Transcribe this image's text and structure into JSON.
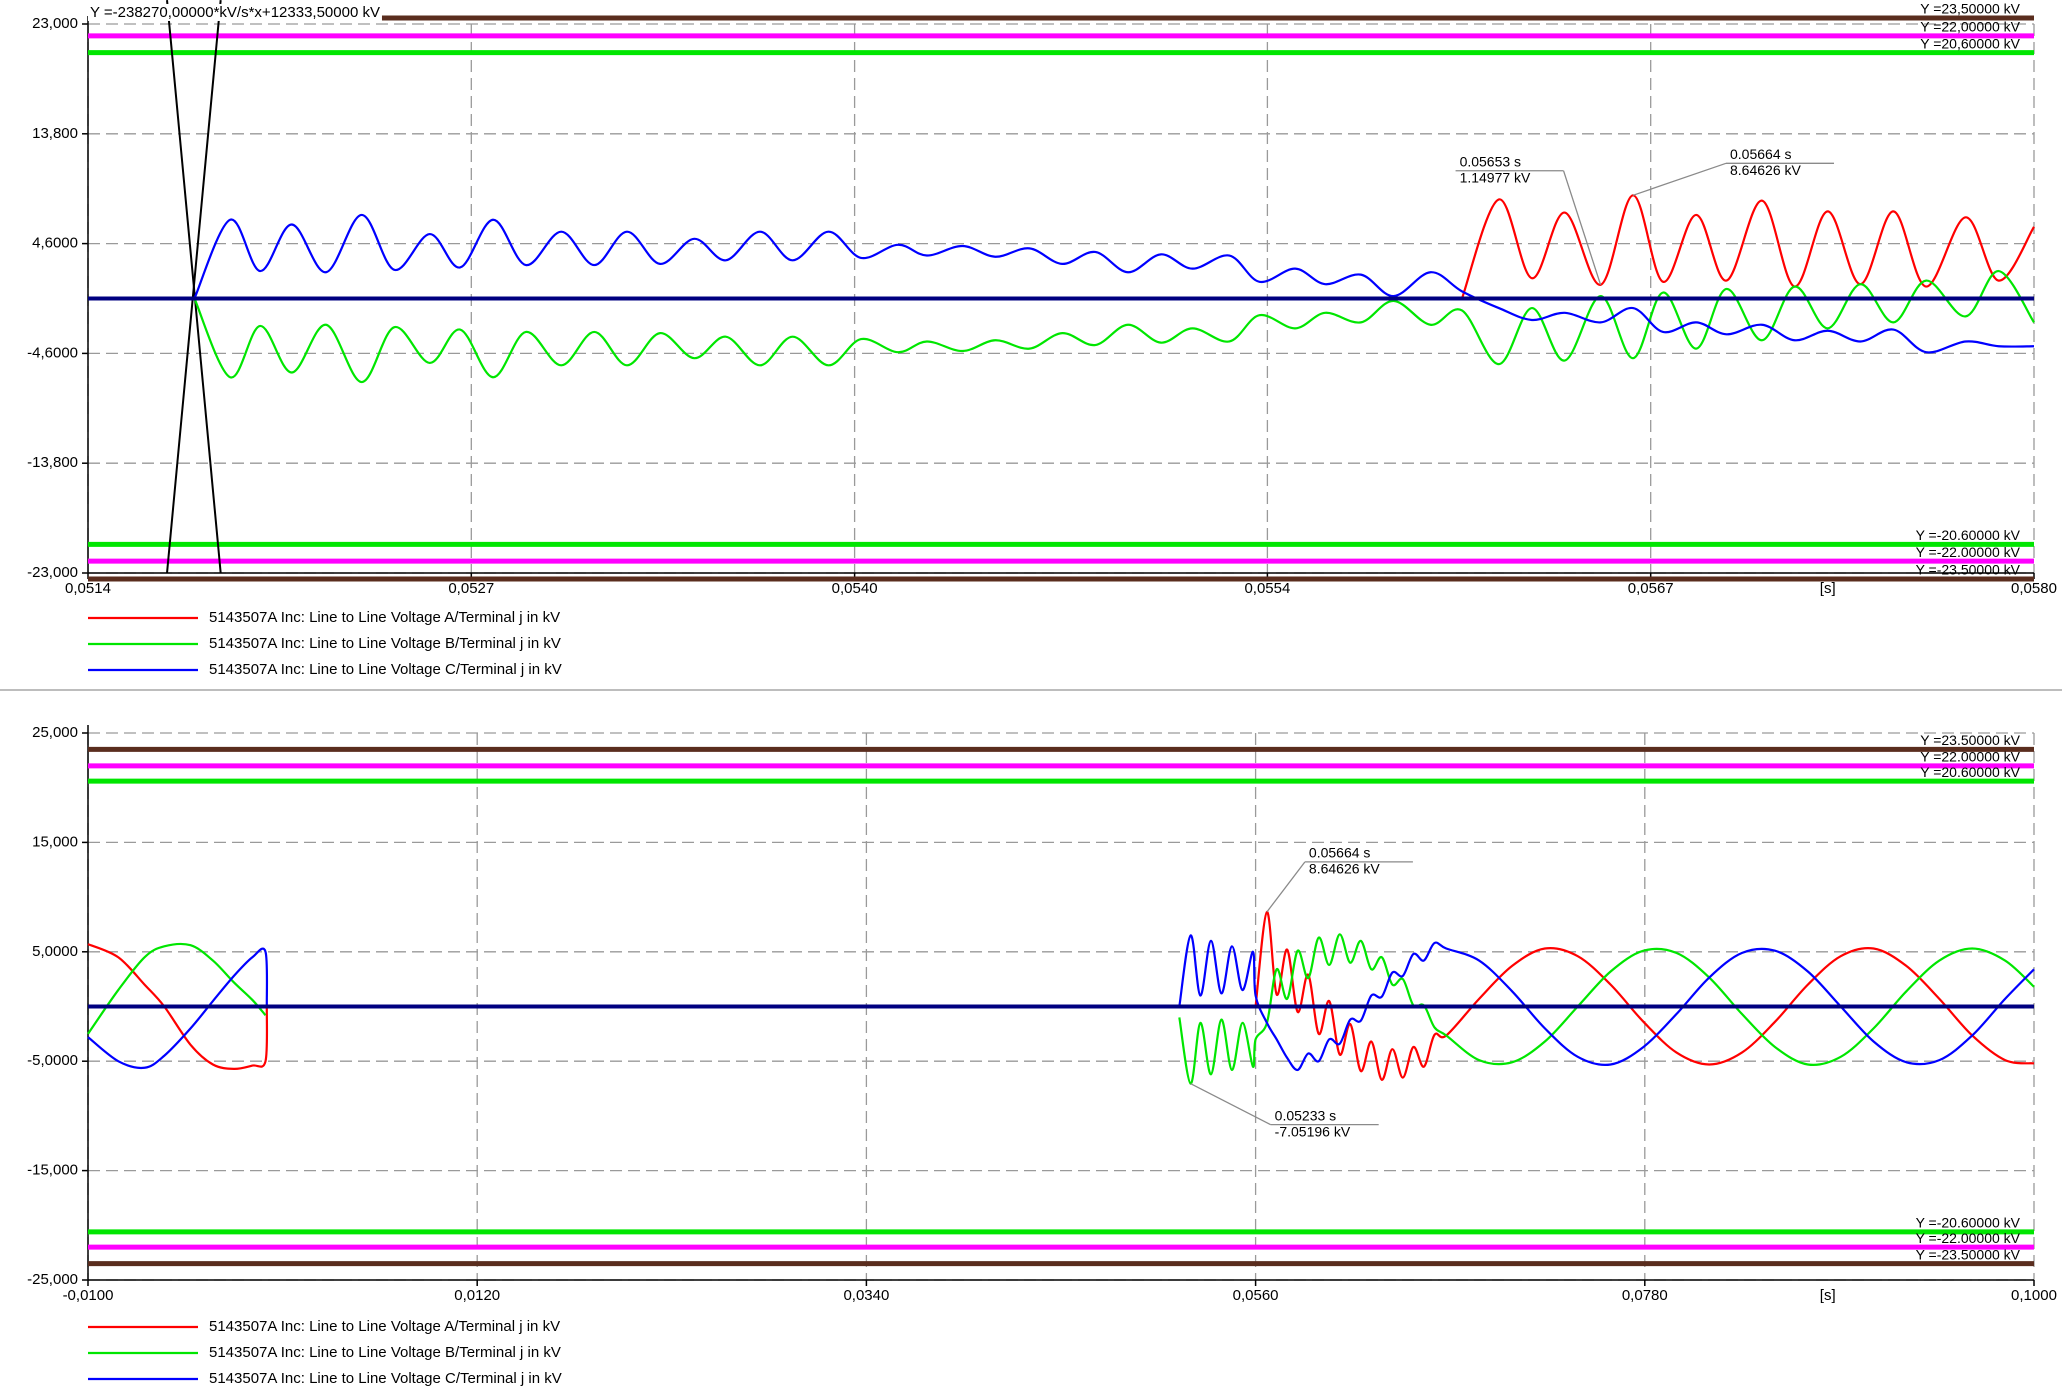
{
  "chart_data": [
    {
      "type": "line",
      "formula": "Y =-238270,00000*kV/s*x+12333,50000 kV",
      "x_unit": "[s]",
      "xlim": [
        0.0514,
        0.058
      ],
      "xticks": [
        {
          "value": 0.0514,
          "label": "0,0514"
        },
        {
          "value": 0.0527,
          "label": "0,0527"
        },
        {
          "value": 0.054,
          "label": "0,0540"
        },
        {
          "value": 0.0554,
          "label": "0,0554"
        },
        {
          "value": 0.0567,
          "label": "0,0567"
        },
        {
          "value": 0.058,
          "label": "0,0580"
        }
      ],
      "ylim": [
        -23,
        23
      ],
      "yticks": [
        {
          "value": 23,
          "label": "23,000"
        },
        {
          "value": 13.8,
          "label": "13,800"
        },
        {
          "value": 4.6,
          "label": "4,6000"
        },
        {
          "value": -4.6,
          "label": "-4,6000"
        },
        {
          "value": -13.8,
          "label": "-13,800"
        },
        {
          "value": -23,
          "label": "-23,000"
        }
      ],
      "grid": true,
      "limits": [
        {
          "value": 23.5,
          "label": "Y =23,50000 kV",
          "color": "#5a2d1e"
        },
        {
          "value": 22,
          "label": "Y =22,00000 kV",
          "color": "#ff00ff"
        },
        {
          "value": 20.6,
          "label": "Y =20,60000 kV",
          "color": "#00e600"
        },
        {
          "value": -20.6,
          "label": "Y =-20.60000 kV",
          "color": "#00e600"
        },
        {
          "value": -22,
          "label": "Y =-22.00000 kV",
          "color": "#ff00ff"
        },
        {
          "value": -23.5,
          "label": "Y =-23.50000 kV",
          "color": "#5a2d1e"
        }
      ],
      "ref_lines": [
        {
          "x": [
            0.051668,
            0.05185
          ],
          "values": [
            25,
            -23
          ]
        },
        {
          "x": [
            0.05185,
            0.051668
          ],
          "values": [
            25,
            -23
          ]
        }
      ],
      "annotations": [
        {
          "x": 0.05653,
          "y": 1.14977,
          "x_label": "0.05653 s",
          "y_label": "1.14977 kV"
        },
        {
          "x": 0.05664,
          "y": 8.64626,
          "x_label": "0.05664 s",
          "y_label": "8.64626 kV"
        }
      ],
      "x": [
        0.051761,
        0.051882,
        0.051984,
        0.052091,
        0.052207,
        0.052328,
        0.052439,
        0.052559,
        0.052662,
        0.052774,
        0.052885,
        0.053005,
        0.053117,
        0.053228,
        0.05334,
        0.053456,
        0.053563,
        0.053679,
        0.05379,
        0.053911,
        0.054022,
        0.054147,
        0.054245,
        0.054366,
        0.054477,
        0.054593,
        0.054704,
        0.054816,
        0.054927,
        0.055039,
        0.055146,
        0.055271,
        0.055373,
        0.055494,
        0.055596,
        0.055717,
        0.055828,
        0.055953,
        0.05606,
        0.056185,
        0.056297,
        0.056408,
        0.05653,
        0.05664,
        0.056742,
        0.056854,
        0.056957,
        0.057077,
        0.057188,
        0.0573,
        0.057411,
        0.057523,
        0.057634,
        0.057768,
        0.05788,
        0.058
      ],
      "series": [
        {
          "name": "5143507A Inc: Line to Line Voltage A/Terminal j in kV",
          "color": "#ff0000",
          "values": [
            null,
            null,
            null,
            null,
            null,
            null,
            null,
            null,
            null,
            null,
            null,
            null,
            null,
            null,
            null,
            null,
            null,
            null,
            null,
            null,
            null,
            null,
            null,
            null,
            null,
            null,
            null,
            null,
            null,
            null,
            null,
            null,
            null,
            null,
            null,
            null,
            null,
            null,
            0,
            8.3,
            1.7,
            7.2,
            1.14977,
            8.64626,
            1.4,
            7.0,
            1.5,
            8.2,
            1.0,
            7.3,
            1.2,
            7.3,
            1.0,
            6.8,
            1.5,
            6.0
          ]
        },
        {
          "name": "5143507A Inc: Line to Line Voltage B/Terminal j in kV",
          "color": "#00e600",
          "values": [
            0,
            -6.6,
            -2.3,
            -6.2,
            -2.2,
            -7.0,
            -2.4,
            -5.4,
            -2.6,
            -6.6,
            -2.8,
            -5.6,
            -2.8,
            -5.6,
            -2.9,
            -5.0,
            -3.2,
            -5.6,
            -3.2,
            -5.6,
            -3.4,
            -4.5,
            -3.6,
            -4.4,
            -3.5,
            -4.2,
            -2.9,
            -3.9,
            -2.2,
            -3.7,
            -2.5,
            -3.6,
            -1.4,
            -2.5,
            -1.2,
            -2.0,
            -0.2,
            -2.2,
            -1.0,
            -5.5,
            -0.8,
            -5.2,
            0.2,
            -5.0,
            0.5,
            -4.2,
            0.8,
            -3.5,
            1.0,
            -2.5,
            1.2,
            -2.0,
            1.5,
            -1.5,
            2.3,
            -2.0
          ]
        },
        {
          "name": "5143507A Inc: Line to Line Voltage C/Terminal j in kV",
          "color": "#0000ff",
          "values": [
            0,
            6.6,
            2.3,
            6.2,
            2.2,
            7.0,
            2.4,
            5.4,
            2.6,
            6.6,
            2.8,
            5.6,
            2.8,
            5.6,
            2.9,
            5.0,
            3.2,
            5.6,
            3.2,
            5.6,
            3.4,
            4.5,
            3.6,
            4.4,
            3.5,
            4.2,
            2.9,
            3.9,
            2.2,
            3.7,
            2.5,
            3.6,
            1.4,
            2.5,
            1.2,
            2.0,
            0.2,
            2.2,
            0.6,
            -0.8,
            -1.8,
            -1.2,
            -2.0,
            -0.8,
            -2.8,
            -2.0,
            -3.0,
            -2.2,
            -3.5,
            -2.7,
            -3.6,
            -2.6,
            -4.5,
            -3.6,
            -4.0,
            -4.0
          ]
        }
      ]
    },
    {
      "type": "line",
      "x_unit": "[s]",
      "xlim": [
        -0.01,
        0.1
      ],
      "xticks": [
        {
          "value": -0.01,
          "label": "-0,0100"
        },
        {
          "value": 0.012,
          "label": "0,0120"
        },
        {
          "value": 0.034,
          "label": "0,0340"
        },
        {
          "value": 0.056,
          "label": "0,0560"
        },
        {
          "value": 0.078,
          "label": "0,0780"
        },
        {
          "value": 0.1,
          "label": "0,1000"
        }
      ],
      "ylim": [
        -25,
        25
      ],
      "yticks": [
        {
          "value": 25,
          "label": "25,000"
        },
        {
          "value": 15,
          "label": "15,000"
        },
        {
          "value": 5,
          "label": "5,0000"
        },
        {
          "value": -5,
          "label": "-5,0000"
        },
        {
          "value": -15,
          "label": "-15,000"
        },
        {
          "value": -25,
          "label": "-25,000"
        }
      ],
      "grid": true,
      "limits": [
        {
          "value": 23.5,
          "label": "Y =23.50000 kV",
          "color": "#5a2d1e"
        },
        {
          "value": 22,
          "label": "Y =22.00000 kV",
          "color": "#ff00ff"
        },
        {
          "value": 20.6,
          "label": "Y =20.60000 kV",
          "color": "#00e600"
        },
        {
          "value": -20.6,
          "label": "Y =-20.60000 kV",
          "color": "#00e600"
        },
        {
          "value": -22,
          "label": "Y =-22.00000 kV",
          "color": "#ff00ff"
        },
        {
          "value": -23.5,
          "label": "Y =-23.50000 kV",
          "color": "#5a2d1e"
        }
      ],
      "annotations": [
        {
          "x": 0.05664,
          "y": 8.64626,
          "x_label": "0.05664 s",
          "y_label": "8.64626 kV"
        },
        {
          "x": 0.05233,
          "y": -7.05196,
          "x_label": "0.05233 s",
          "y_label": "-7.05196 kV"
        }
      ],
      "x": [
        -0.01,
        -0.008291,
        -0.006804,
        -0.005689,
        -0.004203,
        -0.002939,
        -0.00175,
        -0.000709,
        3.4e-05,
        0.000108,
        0.025,
        0.051689,
        0.05233,
        0.052878,
        0.053473,
        0.054068,
        0.054662,
        0.055257,
        0.055851,
        0.056,
        0.05664,
        0.057189,
        0.057784,
        0.058378,
        0.058973,
        0.059568,
        0.060162,
        0.060757,
        0.061351,
        0.061946,
        0.062541,
        0.063135,
        0.06373,
        0.064324,
        0.064919,
        0.065514,
        0.066108,
        0.066777,
        0.068635,
        0.070493,
        0.072352,
        0.07421,
        0.076068,
        0.077926,
        0.079784,
        0.081642,
        0.0835,
        0.085358,
        0.087217,
        0.089075,
        0.090933,
        0.092791,
        0.094649,
        0.096507,
        0.098365,
        0.1
      ],
      "series": [
        {
          "name": "5143507A Inc: Line to Line Voltage A/Terminal j in kV",
          "color": "#ff0000",
          "values": [
            5.7,
            4.5,
            2.0,
            0,
            -3.5,
            -5.3,
            -5.7,
            -5.4,
            -5.0,
            0,
            null,
            null,
            null,
            null,
            null,
            null,
            null,
            null,
            null,
            0,
            8.64626,
            1.1,
            5.2,
            -0.5,
            2.9,
            -2.5,
            0.5,
            -4.4,
            -1.6,
            -5.9,
            -3.2,
            -6.7,
            -3.9,
            -6.5,
            -3.7,
            -5.5,
            -2.6,
            -2.65,
            0.7,
            3.7,
            5.3,
            4.6,
            2.0,
            -1.4,
            -4.2,
            -5.3,
            -4.2,
            -1.4,
            2.0,
            4.6,
            5.3,
            3.7,
            0.7,
            -2.65,
            -4.9,
            -5.2
          ]
        },
        {
          "name": "5143507A Inc: Line to Line Voltage B/Terminal j in kV",
          "color": "#00e600",
          "values": [
            -2.5,
            1.5,
            4.5,
            5.5,
            5.6,
            4.2,
            2.2,
            0.6,
            -0.8,
            null,
            null,
            -1.0,
            -7.05196,
            -1.5,
            -6.2,
            -1.2,
            -5.8,
            -1.5,
            -5.5,
            -3.0,
            -1.5,
            3.4,
            0.7,
            5.1,
            2.6,
            6.3,
            3.8,
            6.6,
            4.0,
            6.0,
            3.4,
            4.5,
            2.0,
            2.5,
            0.1,
            0.1,
            -1.9,
            -2.65,
            -4.9,
            -5.1,
            -3.2,
            0,
            3.2,
            5.1,
            4.9,
            2.65,
            -0.7,
            -3.7,
            -5.3,
            -4.6,
            -2.0,
            1.4,
            4.2,
            5.3,
            4.2,
            1.8
          ]
        },
        {
          "name": "5143507A Inc: Line to Line Voltage C/Terminal j in kV",
          "color": "#0000ff",
          "values": [
            -2.8,
            -5.0,
            -5.6,
            -4.5,
            -2.0,
            0.5,
            2.8,
            4.5,
            5.0,
            0,
            null,
            0,
            6.5,
            1.0,
            6.0,
            1.2,
            5.5,
            1.5,
            5.0,
            1.0,
            -1.5,
            -3.0,
            -4.7,
            -5.8,
            -4.3,
            -5.0,
            -3.0,
            -3.4,
            -1.2,
            -1.3,
            1.0,
            0.9,
            3.1,
            2.8,
            4.8,
            4.2,
            5.8,
            5.3,
            4.2,
            1.4,
            -2.0,
            -4.6,
            -5.3,
            -3.7,
            -0.7,
            2.65,
            4.9,
            5.1,
            3.2,
            0,
            -3.2,
            -5.1,
            -4.9,
            -2.65,
            0.7,
            3.4
          ]
        }
      ]
    }
  ]
}
